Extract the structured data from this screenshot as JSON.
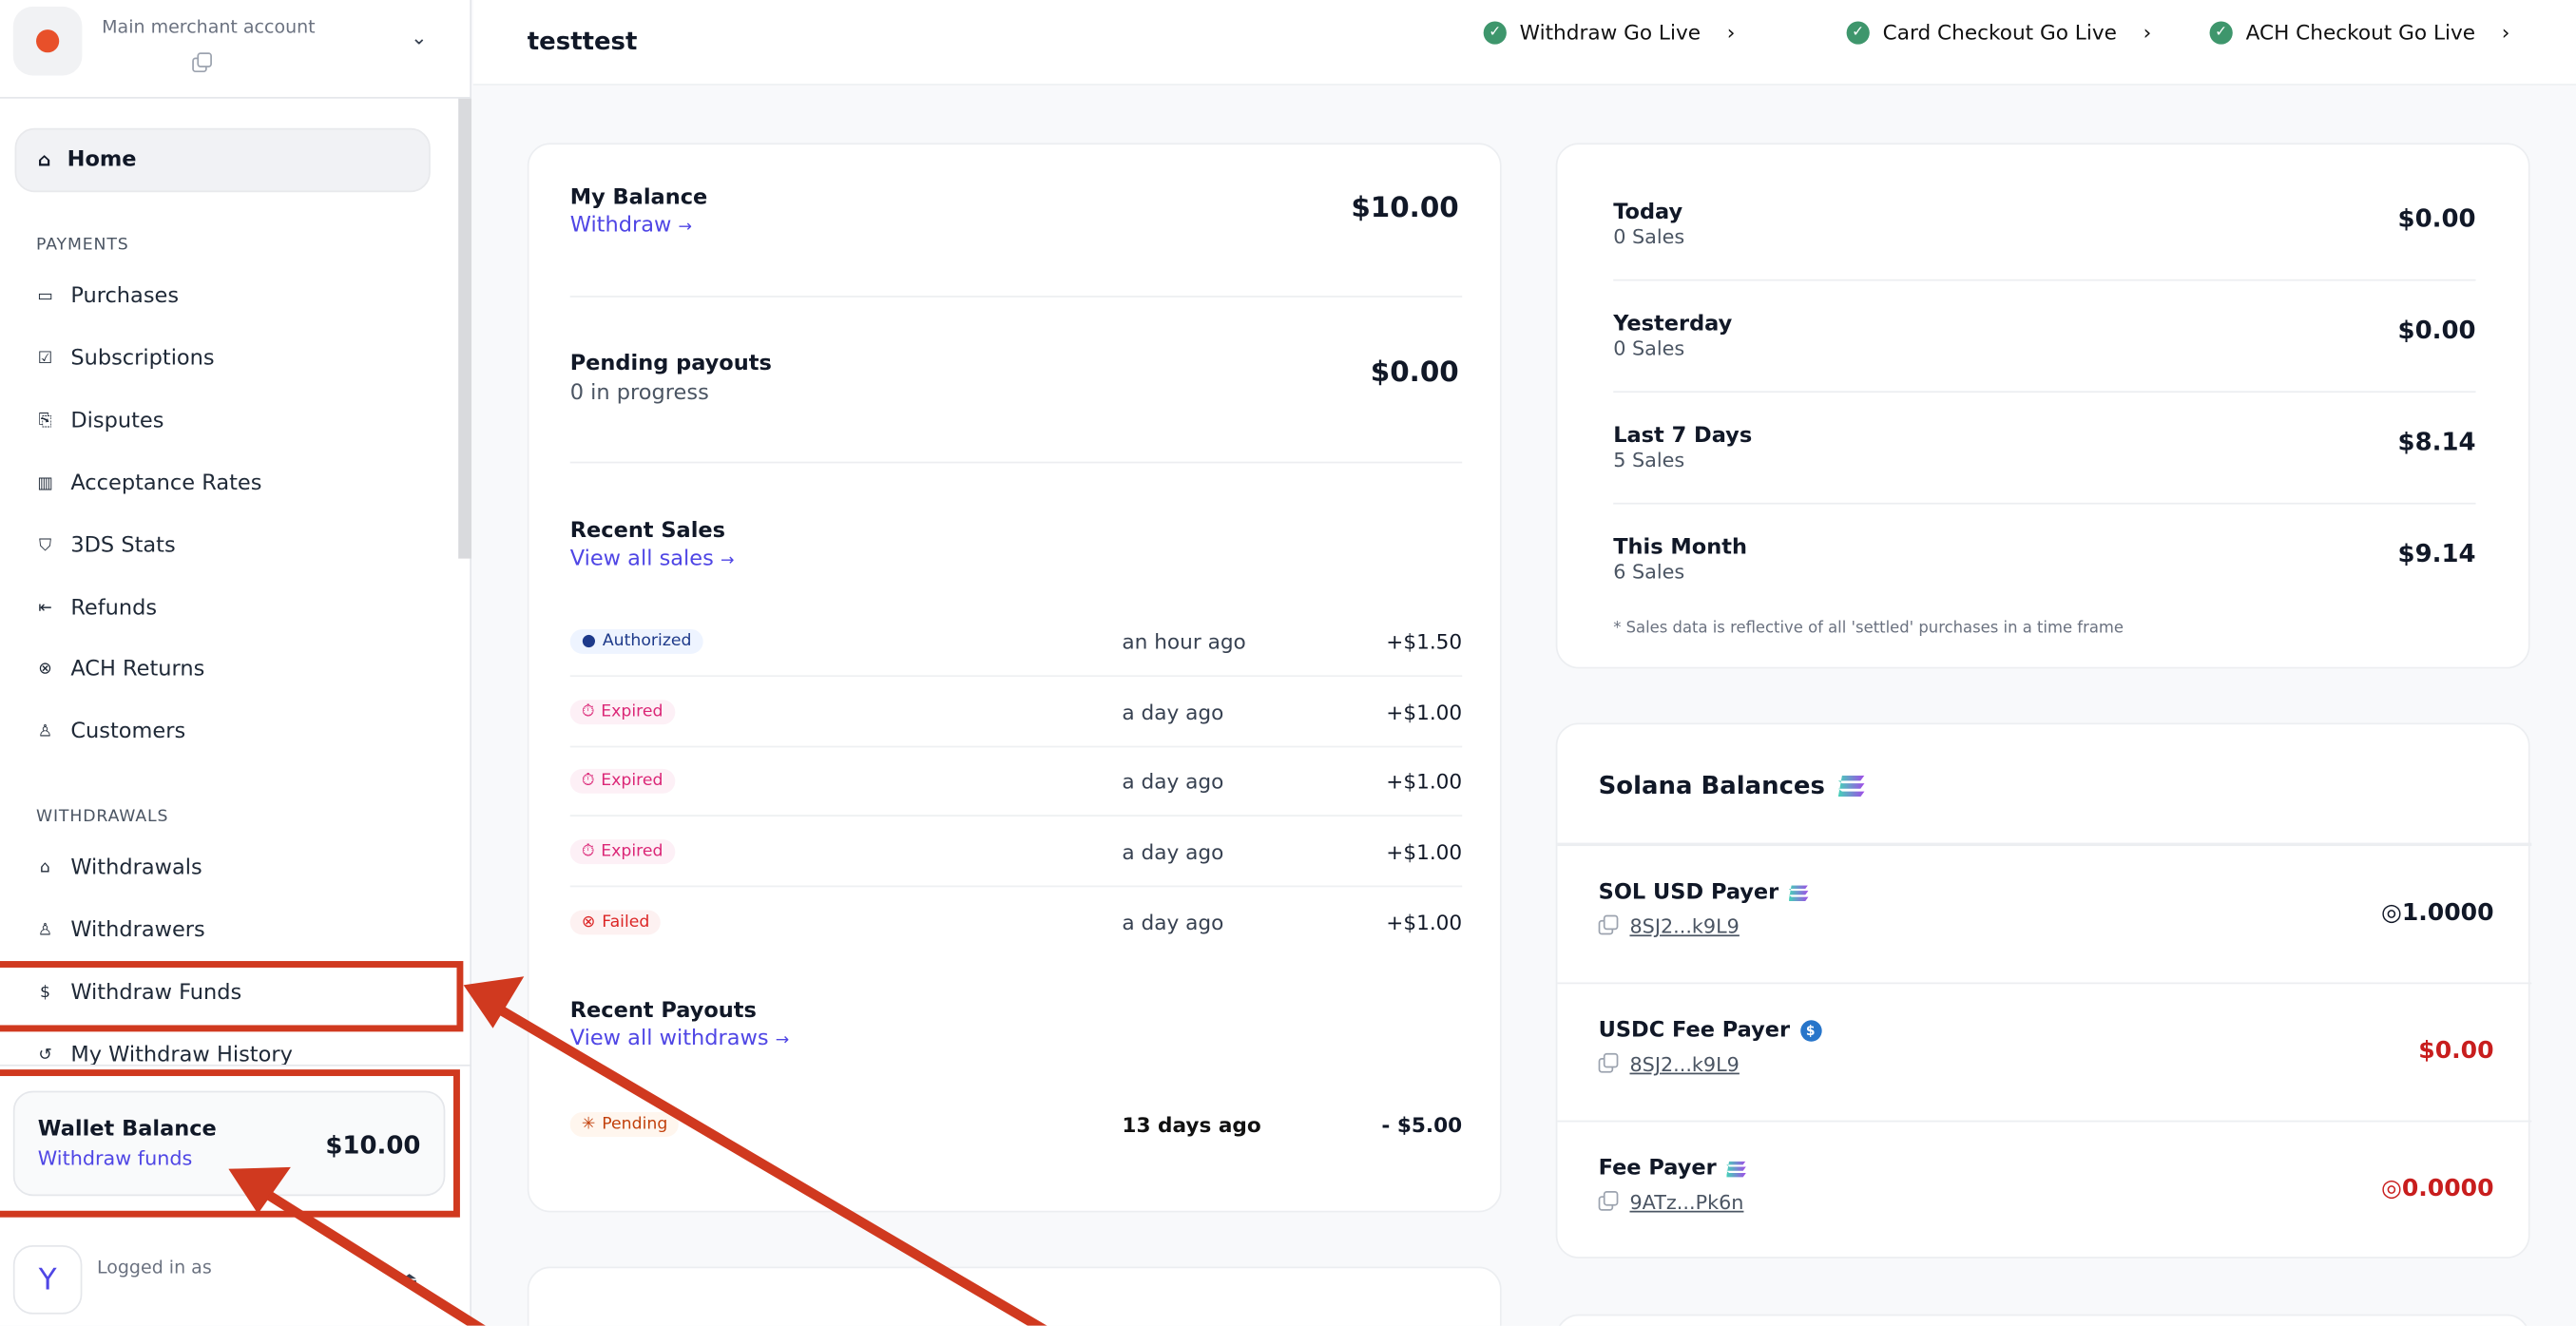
{
  "sidebar": {
    "account_label": "Main merchant account",
    "home": "Home",
    "payments_heading": "PAYMENTS",
    "payments": [
      {
        "label": "Purchases",
        "icon": "credit-card-icon"
      },
      {
        "label": "Subscriptions",
        "icon": "calendar-check-icon"
      },
      {
        "label": "Disputes",
        "icon": "chat-icon"
      },
      {
        "label": "Acceptance Rates",
        "icon": "bar-chart-icon"
      },
      {
        "label": "3DS Stats",
        "icon": "shield-icon"
      },
      {
        "label": "Refunds",
        "icon": "arrow-left-bar-icon"
      },
      {
        "label": "ACH Returns",
        "icon": "x-circle-icon"
      },
      {
        "label": "Customers",
        "icon": "user-icon"
      }
    ],
    "withdrawals_heading": "WITHDRAWALS",
    "withdrawals": [
      {
        "label": "Withdrawals",
        "icon": "bank-icon"
      },
      {
        "label": "Withdrawers",
        "icon": "user-icon"
      },
      {
        "label": "Withdraw Funds",
        "icon": "dollar-receipt-icon"
      },
      {
        "label": "My Withdraw History",
        "icon": "history-icon"
      }
    ],
    "wallet": {
      "title": "Wallet Balance",
      "link": "Withdraw funds",
      "amount": "$10.00"
    },
    "logged_in": "Logged in as",
    "avatar_letter": "Y"
  },
  "topbar": {
    "title": "testtest",
    "golive": [
      "Withdraw Go Live",
      "Card Checkout Go Live",
      "ACH Checkout Go Live"
    ]
  },
  "balance": {
    "title": "My Balance",
    "link": "Withdraw",
    "amount": "$10.00",
    "pending_title": "Pending payouts",
    "pending_sub": "0 in progress",
    "pending_amount": "$0.00",
    "recent_sales_title": "Recent Sales",
    "recent_sales_link": "View all sales",
    "sales": [
      {
        "status": "Authorized",
        "time": "an hour ago",
        "amount": "+$1.50"
      },
      {
        "status": "Expired",
        "time": "a day ago",
        "amount": "+$1.00"
      },
      {
        "status": "Expired",
        "time": "a day ago",
        "amount": "+$1.00"
      },
      {
        "status": "Expired",
        "time": "a day ago",
        "amount": "+$1.00"
      },
      {
        "status": "Failed",
        "time": "a day ago",
        "amount": "+$1.00"
      }
    ],
    "recent_payouts_title": "Recent Payouts",
    "recent_payouts_link": "View all withdraws",
    "payouts": [
      {
        "status": "Pending",
        "time": "13 days ago",
        "amount": "- $5.00"
      }
    ]
  },
  "stats": {
    "rows": [
      {
        "label": "Today",
        "sub": "0 Sales",
        "amount": "$0.00"
      },
      {
        "label": "Yesterday",
        "sub": "0 Sales",
        "amount": "$0.00"
      },
      {
        "label": "Last 7 Days",
        "sub": "5 Sales",
        "amount": "$8.14"
      },
      {
        "label": "This Month",
        "sub": "6 Sales",
        "amount": "$9.14"
      }
    ],
    "note": "* Sales data is reflective of all 'settled' purchases in a time frame"
  },
  "solana": {
    "title": "Solana Balances",
    "rows": [
      {
        "label": "SOL USD Payer",
        "icon": "solana-icon",
        "address": "8SJ2...k9L9",
        "amount": "◎1.0000",
        "color": "#111827"
      },
      {
        "label": "USDC Fee Payer",
        "icon": "usdc-icon",
        "address": "8SJ2...k9L9",
        "amount": "$0.00",
        "color": "#c81e1e"
      },
      {
        "label": "Fee Payer",
        "icon": "solana-icon",
        "address": "9ATz...Pk6n",
        "amount": "◎0.0000",
        "color": "#c81e1e"
      }
    ]
  },
  "colors": {
    "accent": "#4f46e5",
    "success": "#3e966c",
    "danger": "#c81e1e",
    "annotation": "#d0391f"
  }
}
